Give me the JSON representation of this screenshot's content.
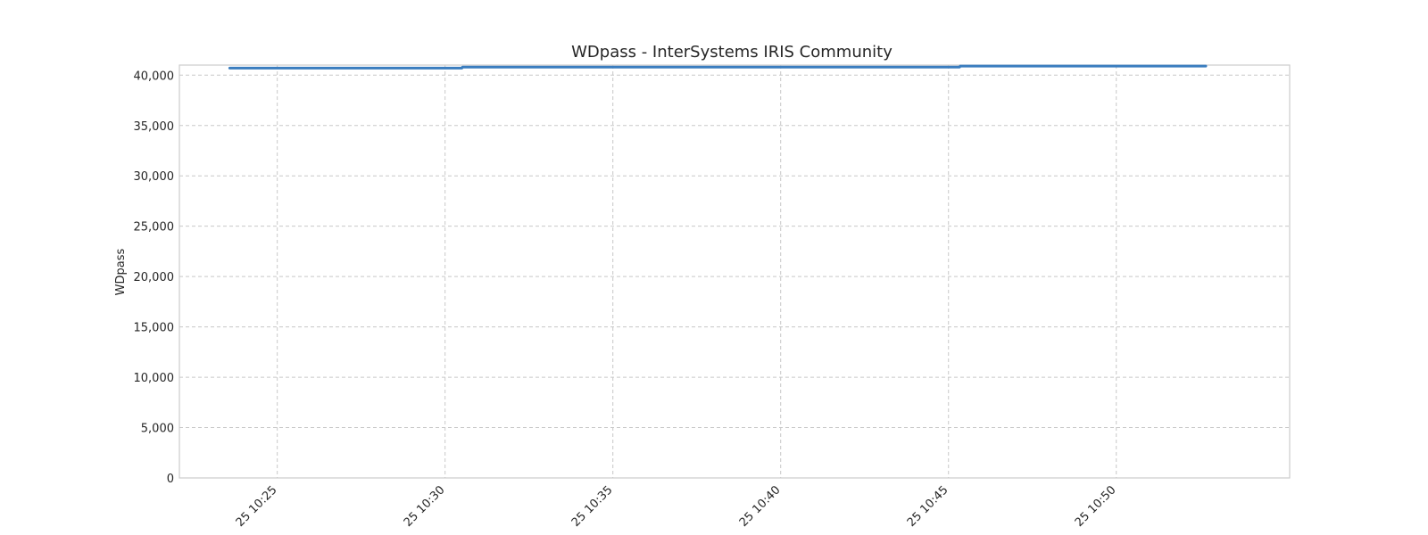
{
  "chart_data": {
    "type": "line",
    "title": "WDpass - InterSystems IRIS Community",
    "xlabel": "",
    "ylabel": "WDpass",
    "x_axis_type": "time",
    "xlim": [
      "25 10:22:05",
      "25 10:55:10"
    ],
    "ylim": [
      0,
      41000
    ],
    "y_ticks": [
      0,
      5000,
      10000,
      15000,
      20000,
      25000,
      30000,
      35000,
      40000
    ],
    "y_tick_labels": [
      "0",
      "5,000",
      "10,000",
      "15,000",
      "20,000",
      "25,000",
      "30,000",
      "35,000",
      "40,000"
    ],
    "x_ticks": [
      "25 10:25",
      "25 10:30",
      "25 10:35",
      "25 10:40",
      "25 10:45",
      "25 10:50"
    ],
    "x_tick_labels": [
      "25 10:25",
      "25 10:30",
      "25 10:35",
      "25 10:40",
      "25 10:45",
      "25 10:50"
    ],
    "grid": true,
    "legend": "none",
    "series_color": "#3a7dbf",
    "series": [
      {
        "x": [
          "25 10:23:35",
          "25 10:30:30",
          "25 10:30:31",
          "25 10:45:20",
          "25 10:45:21",
          "25 10:52:40"
        ],
        "values": [
          40700,
          40700,
          40800,
          40800,
          40900,
          40900
        ]
      }
    ]
  }
}
